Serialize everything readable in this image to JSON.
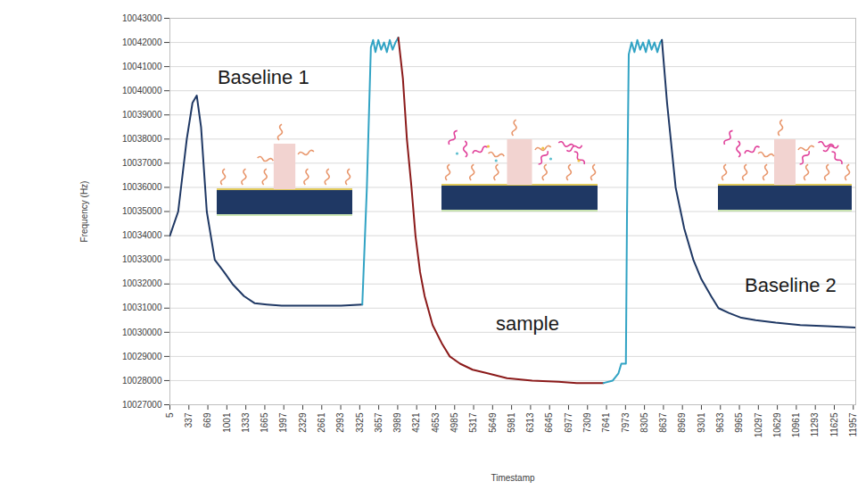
{
  "chart_data": {
    "type": "line",
    "x_label": "Timestamp",
    "y_label": "Frequency (Hz)",
    "xlim": [
      5,
      12000
    ],
    "xticks": [
      5,
      337,
      669,
      1001,
      1333,
      1665,
      1997,
      2329,
      2661,
      2993,
      3325,
      3657,
      3989,
      4321,
      4653,
      4985,
      5317,
      5649,
      5981,
      6313,
      6645,
      6977,
      7309,
      7641,
      7973,
      8305,
      8637,
      8969,
      9301,
      9633,
      9965,
      10297,
      10629,
      10961,
      11293,
      11625,
      11957
    ],
    "ylim": [
      10027000,
      10043000
    ],
    "yticks": [
      10027000,
      10028000,
      10029000,
      10030000,
      10031000,
      10032000,
      10033000,
      10034000,
      10035000,
      10036000,
      10037000,
      10038000,
      10039000,
      10040000,
      10041000,
      10042000,
      10043000
    ],
    "grid": true,
    "series": [
      {
        "color": "#1f3864",
        "x": [
          5,
          150,
          300,
          400,
          475,
          550,
          650,
          790,
          950,
          1100,
          1300,
          1490,
          1700,
          1960,
          2500,
          3000,
          3370
        ],
        "values": [
          10034000,
          10035000,
          10038000,
          10039500,
          10039800,
          10038500,
          10035000,
          10033000,
          10032500,
          10032000,
          10031500,
          10031200,
          10031150,
          10031100,
          10031100,
          10031100,
          10031150
        ]
      },
      {
        "color": "#31a3c4",
        "x": [
          3370,
          3450,
          3520,
          3560,
          3600,
          3650,
          3700,
          3750,
          3800,
          3850,
          3900,
          3950,
          4000
        ],
        "values": [
          10031150,
          10036000,
          10041800,
          10042100,
          10041600,
          10042100,
          10041700,
          10042000,
          10041600,
          10042100,
          10041700,
          10042000,
          10042200
        ]
      },
      {
        "color": "#8b1a1a",
        "x": [
          4000,
          4080,
          4150,
          4230,
          4300,
          4380,
          4460,
          4600,
          4770,
          4900,
          5080,
          5300,
          5560,
          5900,
          6340,
          6800,
          7120,
          7590
        ],
        "values": [
          10042200,
          10040500,
          10038000,
          10036000,
          10034000,
          10032500,
          10031500,
          10030300,
          10029500,
          10029000,
          10028700,
          10028450,
          10028300,
          10028100,
          10028000,
          10027950,
          10027900,
          10027900
        ]
      },
      {
        "color": "#31a3c4",
        "x": [
          7590,
          7750,
          7850,
          7900,
          7980,
          8000,
          8030,
          8080,
          8130,
          8180,
          8230,
          8280,
          8330,
          8380,
          8430,
          8480,
          8530,
          8580,
          8610
        ],
        "values": [
          10027900,
          10028000,
          10028300,
          10028700,
          10028700,
          10035000,
          10041500,
          10042000,
          10041600,
          10042100,
          10041700,
          10042000,
          10041600,
          10042100,
          10041700,
          10042000,
          10041600,
          10042000,
          10042100
        ]
      },
      {
        "color": "#1f3864",
        "x": [
          8610,
          8700,
          8850,
          9000,
          9160,
          9300,
          9470,
          9600,
          9780,
          10000,
          10250,
          10600,
          11030,
          11500,
          12000
        ],
        "values": [
          10042100,
          10039500,
          10036000,
          10034300,
          10033000,
          10032200,
          10031500,
          10031000,
          10030800,
          10030600,
          10030500,
          10030400,
          10030300,
          10030250,
          10030200
        ]
      }
    ],
    "annotations": [
      {
        "text": "Baseline 1",
        "x": 1640,
        "y": 10040550
      },
      {
        "text": "sample",
        "x": 6260,
        "y": 10030330
      },
      {
        "text": "Baseline 2",
        "x": 10860,
        "y": 10031950
      }
    ]
  }
}
